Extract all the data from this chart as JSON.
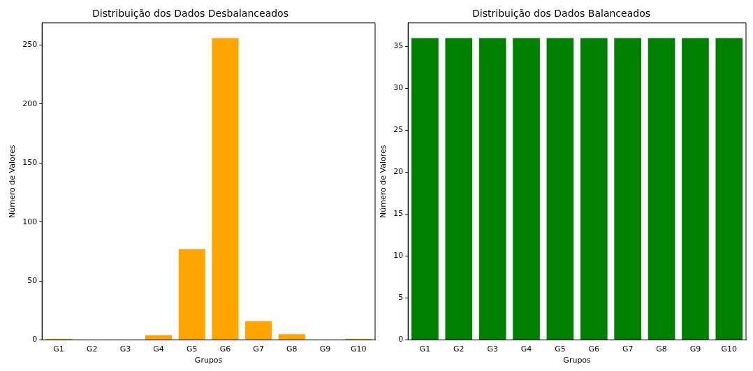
{
  "chart_data": [
    {
      "type": "bar",
      "title": "Distribuição dos Dados Desbalanceados",
      "xlabel": "Grupos",
      "ylabel": "Número de Valores",
      "categories": [
        "G1",
        "G2",
        "G3",
        "G4",
        "G5",
        "G6",
        "G7",
        "G8",
        "G9",
        "G10"
      ],
      "values": [
        1,
        0,
        0,
        4,
        77,
        256,
        16,
        5,
        0,
        1
      ],
      "color": "#ffa500",
      "ylim": [
        0,
        268.8
      ],
      "yticks": [
        0,
        50,
        100,
        150,
        200,
        250
      ],
      "grid": false,
      "legend": false
    },
    {
      "type": "bar",
      "title": "Distribuição dos Dados Balanceados",
      "xlabel": "Grupos",
      "ylabel": "Número de Valores",
      "categories": [
        "G1",
        "G2",
        "G3",
        "G4",
        "G5",
        "G6",
        "G7",
        "G8",
        "G9",
        "G10"
      ],
      "values": [
        36,
        36,
        36,
        36,
        36,
        36,
        36,
        36,
        36,
        36
      ],
      "color": "#008000",
      "ylim": [
        0,
        37.8
      ],
      "yticks": [
        0,
        5,
        10,
        15,
        20,
        25,
        30,
        35
      ],
      "grid": false,
      "legend": false
    }
  ]
}
